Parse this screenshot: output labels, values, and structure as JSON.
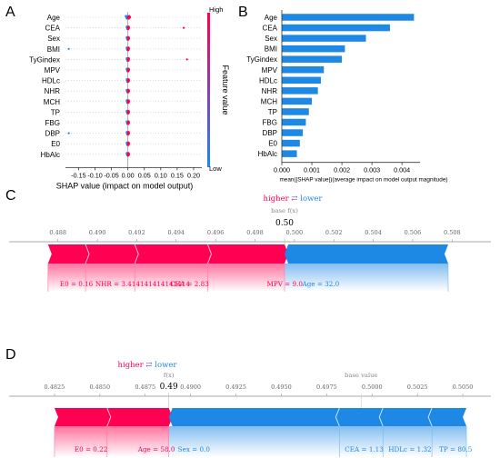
{
  "panels": {
    "a": "A",
    "b": "B",
    "c": "C",
    "d": "D"
  },
  "chart_data": [
    {
      "type": "scatter",
      "panel": "A",
      "features": [
        "Age",
        "CEA",
        "Sex",
        "BMI",
        "TyGindex",
        "MPV",
        "HDLc",
        "NHR",
        "MCH",
        "TP",
        "FBG",
        "DBP",
        "E0",
        "HbAlc"
      ],
      "xlabel": "SHAP value (impact on model output)",
      "xticks": [
        "-0.15",
        "-0.10",
        "-0.05",
        "0.00",
        "0.05",
        "0.10",
        "0.15",
        "0.20"
      ],
      "xlim": [
        -0.19,
        0.225
      ],
      "outliers": [
        {
          "feature": "CEA",
          "x": 0.17,
          "color": "#ff0052"
        },
        {
          "feature": "BMI",
          "x": -0.18,
          "color": "#1e88e5"
        },
        {
          "feature": "TyGindex",
          "x": 0.18,
          "color": "#ff0052"
        },
        {
          "feature": "DBP",
          "x": -0.18,
          "color": "#1e88e5"
        }
      ],
      "colorbar": {
        "high": "High",
        "low": "Low",
        "label": "Feature value"
      },
      "colors": {
        "high": "#ff0052",
        "low": "#1e88e5"
      }
    },
    {
      "type": "bar",
      "panel": "B",
      "orientation": "horizontal",
      "categories": [
        "Age",
        "CEA",
        "Sex",
        "BMI",
        "TyGindex",
        "MPV",
        "HDLc",
        "NHR",
        "MCH",
        "TP",
        "FBG",
        "DBP",
        "E0",
        "HbAlc"
      ],
      "values": [
        0.0044,
        0.0036,
        0.0028,
        0.0021,
        0.002,
        0.0014,
        0.0013,
        0.0012,
        0.001,
        0.0009,
        0.0008,
        0.0007,
        0.0006,
        0.0005
      ],
      "xticks": [
        "0.000",
        "0.001",
        "0.002",
        "0.003",
        "0.004"
      ],
      "xlim": [
        0,
        0.0046
      ],
      "xlabel": "mean(|SHAP value|)(average impact on model output magnitude)",
      "color": "#1e88e5"
    },
    {
      "type": "force",
      "panel": "C",
      "legend": {
        "higher": "higher",
        "arrows": "⇄",
        "lower": "lower"
      },
      "base_label": "base f(x)",
      "fx_value": "0.50",
      "xticks": [
        "0.488",
        "0.490",
        "0.492",
        "0.494",
        "0.496",
        "0.498",
        "0.500",
        "0.502",
        "0.504",
        "0.506",
        "0.508"
      ],
      "xlim": [
        0.487,
        0.509
      ],
      "fx": 0.4995,
      "positive_end": 0.4875,
      "negative_end": 0.5078,
      "positive_boundaries": [
        0.4894,
        0.4919,
        0.4956
      ],
      "negative_boundaries": [],
      "labels": [
        {
          "text": "E0 = 0.16",
          "at": 0.4881,
          "side": "positive"
        },
        {
          "text": "NHR = 3.414141414141414",
          "at": 0.4899,
          "side": "positive"
        },
        {
          "text": "CEA = 2.83",
          "at": 0.4937,
          "side": "positive"
        },
        {
          "text": "MPV = 9.0",
          "at": 0.4986,
          "side": "positive"
        },
        {
          "text": "Age = 32.0",
          "at": 0.5004,
          "side": "negative"
        }
      ],
      "colors": {
        "positive": "#ff0052",
        "negative": "#1e88e5"
      }
    },
    {
      "type": "force",
      "panel": "D",
      "legend": {
        "higher": "higher",
        "arrows": "⇄",
        "lower": "lower"
      },
      "fx_label": "f(x)",
      "base_label": "base value",
      "fx_value": "0.49",
      "xticks": [
        "0.4825",
        "0.4850",
        "0.4875",
        "0.4900",
        "0.4925",
        "0.4950",
        "0.4975",
        "0.5000",
        "0.5025",
        "0.5050"
      ],
      "xlim": [
        0.4808,
        0.5065
      ],
      "fx": 0.4888,
      "base": 0.4994,
      "positive_end": 0.4825,
      "negative_end": 0.5052,
      "positive_boundaries": [
        0.4854
      ],
      "negative_boundaries": [
        0.4982,
        0.5006,
        0.5033
      ],
      "labels": [
        {
          "text": "E0 = 0.22",
          "at": 0.4836,
          "side": "positive"
        },
        {
          "text": "Age = 58.0",
          "at": 0.4871,
          "side": "positive"
        },
        {
          "text": "Sex = 0.0",
          "at": 0.4893,
          "side": "negative"
        },
        {
          "text": "CEA = 1.13",
          "at": 0.4985,
          "side": "negative"
        },
        {
          "text": "HDLc = 1.32",
          "at": 0.5009,
          "side": "negative"
        },
        {
          "text": "TP = 80.5",
          "at": 0.5037,
          "side": "negative"
        }
      ],
      "colors": {
        "positive": "#ff0052",
        "negative": "#1e88e5"
      }
    }
  ]
}
